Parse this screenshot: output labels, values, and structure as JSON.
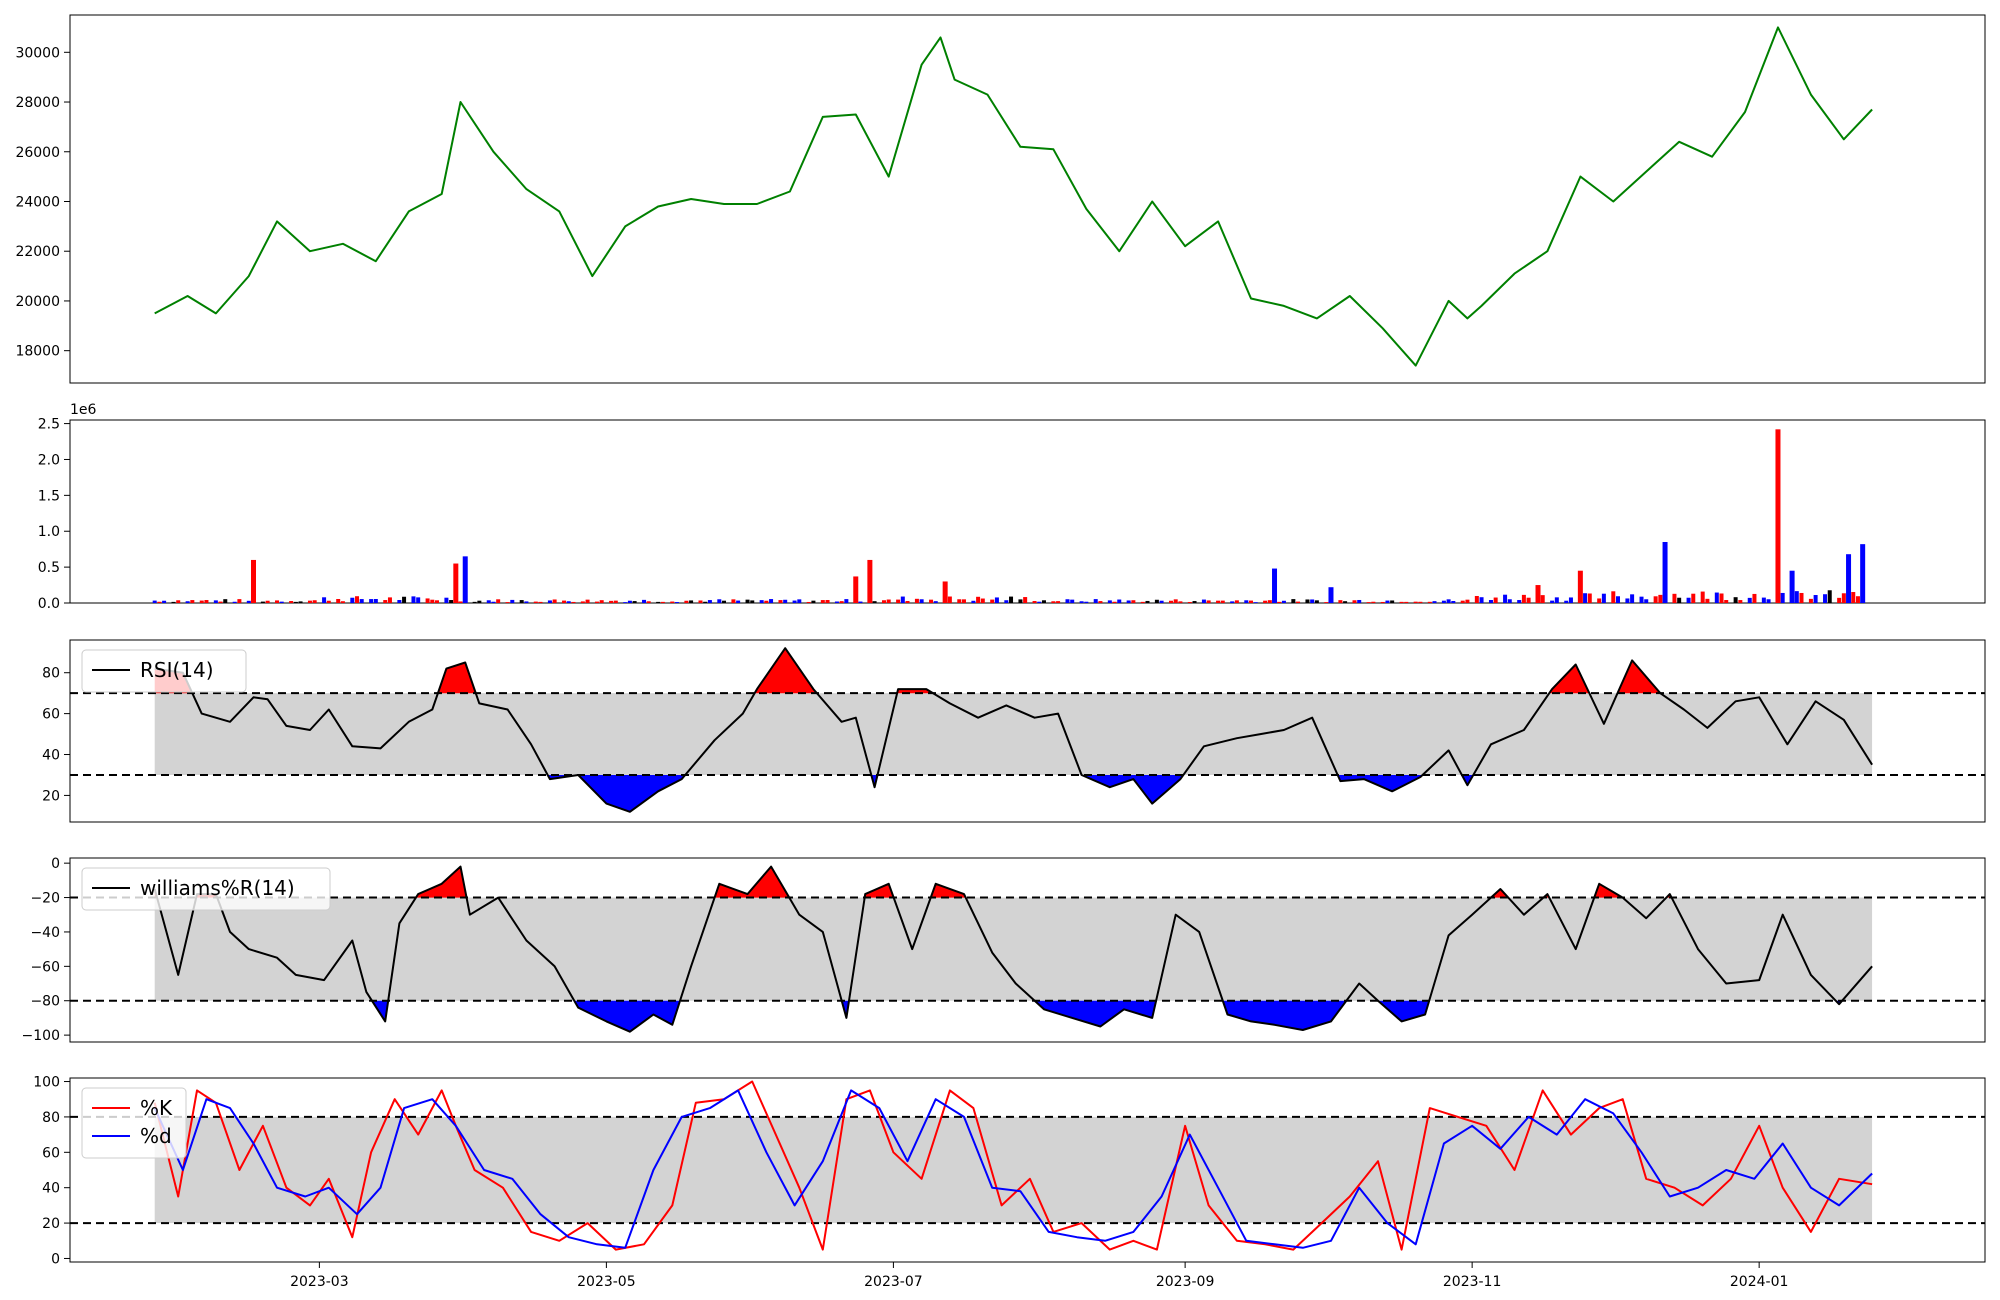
{
  "chart_data": [
    {
      "type": "line",
      "panel": "price",
      "line_color": "#008000",
      "ylim": [
        16700,
        31500
      ],
      "yticks": [
        "18000",
        "20000",
        "22000",
        "24000",
        "26000",
        "28000",
        "30000"
      ],
      "x": [
        "2023-01-25",
        "2023-02-01",
        "2023-02-07",
        "2023-02-14",
        "2023-02-20",
        "2023-02-27",
        "2023-03-06",
        "2023-03-13",
        "2023-03-20",
        "2023-03-27",
        "2023-03-31",
        "2023-04-07",
        "2023-04-14",
        "2023-04-21",
        "2023-04-28",
        "2023-05-05",
        "2023-05-12",
        "2023-05-19",
        "2023-05-26",
        "2023-06-02",
        "2023-06-09",
        "2023-06-16",
        "2023-06-23",
        "2023-06-30",
        "2023-07-07",
        "2023-07-11",
        "2023-07-14",
        "2023-07-21",
        "2023-07-28",
        "2023-08-04",
        "2023-08-11",
        "2023-08-18",
        "2023-08-25",
        "2023-09-01",
        "2023-09-08",
        "2023-09-15",
        "2023-09-22",
        "2023-09-29",
        "2023-10-06",
        "2023-10-13",
        "2023-10-20",
        "2023-10-27",
        "2023-10-31",
        "2023-11-03",
        "2023-11-10",
        "2023-11-17",
        "2023-11-24",
        "2023-12-01",
        "2023-12-08",
        "2023-12-15",
        "2023-12-22",
        "2023-12-29",
        "2024-01-05",
        "2024-01-12",
        "2024-01-19",
        "2024-01-25"
      ],
      "values": [
        19500,
        20200,
        19500,
        21000,
        23200,
        22000,
        22300,
        21600,
        23600,
        24300,
        28000,
        26000,
        24500,
        23600,
        21000,
        23000,
        23800,
        24100,
        23900,
        23900,
        24400,
        27400,
        27500,
        25000,
        29500,
        30600,
        28900,
        28300,
        26200,
        26100,
        23700,
        22000,
        24000,
        22200,
        23200,
        20100,
        19800,
        19300,
        20200,
        18900,
        17400,
        20000,
        19300,
        19800,
        21100,
        22000,
        25000,
        24000,
        25200,
        26400,
        25800,
        27600,
        31000,
        28300,
        26500,
        27700
      ]
    },
    {
      "type": "bar",
      "panel": "volume",
      "offset_label": "1e6",
      "ylim": [
        0,
        2.55
      ],
      "yticks": [
        "0.0",
        "0.5",
        "1.0",
        "1.5",
        "2.0",
        "2.5"
      ],
      "colors": {
        "up": "#ff0000",
        "down": "#0000ff",
        "neutral": "#000000"
      },
      "spikes": [
        {
          "x": "2023-02-15",
          "value": 0.6,
          "dir": "up"
        },
        {
          "x": "2023-03-30",
          "value": 0.55,
          "dir": "up"
        },
        {
          "x": "2023-04-01",
          "value": 0.65,
          "dir": "down"
        },
        {
          "x": "2023-06-23",
          "value": 0.37,
          "dir": "up"
        },
        {
          "x": "2023-06-26",
          "value": 0.6,
          "dir": "up"
        },
        {
          "x": "2023-07-12",
          "value": 0.3,
          "dir": "up"
        },
        {
          "x": "2023-09-20",
          "value": 0.48,
          "dir": "down"
        },
        {
          "x": "2023-10-02",
          "value": 0.22,
          "dir": "down"
        },
        {
          "x": "2023-11-15",
          "value": 0.25,
          "dir": "up"
        },
        {
          "x": "2023-11-24",
          "value": 0.45,
          "dir": "up"
        },
        {
          "x": "2023-12-12",
          "value": 0.85,
          "dir": "down"
        },
        {
          "x": "2024-01-05",
          "value": 2.42,
          "dir": "up"
        },
        {
          "x": "2024-01-08",
          "value": 0.45,
          "dir": "down"
        },
        {
          "x": "2024-01-20",
          "value": 0.68,
          "dir": "down"
        },
        {
          "x": "2024-01-23",
          "value": 0.82,
          "dir": "down"
        }
      ]
    },
    {
      "type": "line",
      "panel": "rsi",
      "series_name": "RSI(14)",
      "ylim": [
        7,
        96
      ],
      "yticks": [
        "20",
        "40",
        "60",
        "80"
      ],
      "upper": 70,
      "lower": 30,
      "band_color": "#d3d3d3",
      "overbought_fill": "#ff0000",
      "oversold_fill": "#0000ff",
      "x": [
        "2023-01-25",
        "2023-01-31",
        "2023-02-04",
        "2023-02-10",
        "2023-02-15",
        "2023-02-18",
        "2023-02-22",
        "2023-02-27",
        "2023-03-03",
        "2023-03-08",
        "2023-03-14",
        "2023-03-20",
        "2023-03-25",
        "2023-03-28",
        "2023-04-01",
        "2023-04-04",
        "2023-04-10",
        "2023-04-15",
        "2023-04-19",
        "2023-04-25",
        "2023-05-01",
        "2023-05-06",
        "2023-05-12",
        "2023-05-17",
        "2023-05-24",
        "2023-05-30",
        "2023-06-02",
        "2023-06-08",
        "2023-06-14",
        "2023-06-20",
        "2023-06-23",
        "2023-06-27",
        "2023-07-02",
        "2023-07-08",
        "2023-07-13",
        "2023-07-19",
        "2023-07-25",
        "2023-07-31",
        "2023-08-05",
        "2023-08-10",
        "2023-08-16",
        "2023-08-21",
        "2023-08-25",
        "2023-08-31",
        "2023-09-05",
        "2023-09-12",
        "2023-09-17",
        "2023-09-22",
        "2023-09-28",
        "2023-10-04",
        "2023-10-09",
        "2023-10-15",
        "2023-10-21",
        "2023-10-27",
        "2023-10-31",
        "2023-11-05",
        "2023-11-12",
        "2023-11-18",
        "2023-11-23",
        "2023-11-29",
        "2023-12-05",
        "2023-12-11",
        "2023-12-16",
        "2023-12-21",
        "2023-12-27",
        "2024-01-01",
        "2024-01-07",
        "2024-01-13",
        "2024-01-19",
        "2024-01-25"
      ],
      "values": [
        82,
        80,
        60,
        56,
        68,
        67,
        54,
        52,
        62,
        44,
        43,
        56,
        62,
        82,
        85,
        65,
        62,
        45,
        28,
        30,
        16,
        12,
        22,
        28,
        47,
        60,
        72,
        92,
        72,
        56,
        58,
        24,
        72,
        72,
        65,
        58,
        64,
        58,
        60,
        30,
        24,
        28,
        16,
        28,
        44,
        48,
        50,
        52,
        58,
        27,
        28,
        22,
        29,
        42,
        25,
        45,
        52,
        72,
        84,
        55,
        86,
        70,
        62,
        53,
        66,
        68,
        45,
        66,
        57,
        35
      ]
    },
    {
      "type": "line",
      "panel": "williams",
      "series_name": "williams%R(14)",
      "ylim": [
        -104,
        3
      ],
      "yticks": [
        "0",
        "−20",
        "−40",
        "−60",
        "−80",
        "−100"
      ],
      "upper": -20,
      "lower": -80,
      "band_color": "#d3d3d3",
      "overbought_fill": "#ff0000",
      "oversold_fill": "#0000ff",
      "x": [
        "2023-01-25",
        "2023-01-30",
        "2023-02-03",
        "2023-02-07",
        "2023-02-10",
        "2023-02-14",
        "2023-02-20",
        "2023-02-24",
        "2023-03-02",
        "2023-03-08",
        "2023-03-11",
        "2023-03-15",
        "2023-03-18",
        "2023-03-22",
        "2023-03-27",
        "2023-03-31",
        "2023-04-02",
        "2023-04-08",
        "2023-04-14",
        "2023-04-20",
        "2023-04-25",
        "2023-05-01",
        "2023-05-06",
        "2023-05-11",
        "2023-05-15",
        "2023-05-19",
        "2023-05-25",
        "2023-05-31",
        "2023-06-05",
        "2023-06-11",
        "2023-06-16",
        "2023-06-21",
        "2023-06-25",
        "2023-06-30",
        "2023-07-05",
        "2023-07-10",
        "2023-07-16",
        "2023-07-22",
        "2023-07-27",
        "2023-08-02",
        "2023-08-08",
        "2023-08-14",
        "2023-08-19",
        "2023-08-25",
        "2023-08-30",
        "2023-09-04",
        "2023-09-10",
        "2023-09-15",
        "2023-09-20",
        "2023-09-26",
        "2023-10-02",
        "2023-10-08",
        "2023-10-12",
        "2023-10-17",
        "2023-10-22",
        "2023-10-27",
        "2023-11-01",
        "2023-11-07",
        "2023-11-12",
        "2023-11-17",
        "2023-11-23",
        "2023-11-28",
        "2023-12-03",
        "2023-12-08",
        "2023-12-13",
        "2023-12-19",
        "2023-12-25",
        "2024-01-01",
        "2024-01-06",
        "2024-01-12",
        "2024-01-18",
        "2024-01-25"
      ],
      "values": [
        -15,
        -65,
        -18,
        -18,
        -40,
        -50,
        -55,
        -65,
        -68,
        -45,
        -75,
        -92,
        -35,
        -18,
        -12,
        -2,
        -30,
        -20,
        -45,
        -60,
        -84,
        -92,
        -98,
        -88,
        -94,
        -60,
        -12,
        -18,
        -2,
        -30,
        -40,
        -90,
        -18,
        -12,
        -50,
        -12,
        -18,
        -52,
        -70,
        -85,
        -90,
        -95,
        -85,
        -90,
        -30,
        -40,
        -88,
        -92,
        -94,
        -97,
        -92,
        -70,
        -80,
        -92,
        -88,
        -42,
        -30,
        -15,
        -30,
        -18,
        -50,
        -12,
        -20,
        -32,
        -18,
        -50,
        -70,
        -68,
        -30,
        -65,
        -82,
        -60
      ]
    },
    {
      "type": "line",
      "panel": "stochastic",
      "ylim": [
        -2,
        102
      ],
      "yticks": [
        "0",
        "20",
        "40",
        "60",
        "80",
        "100"
      ],
      "upper": 80,
      "lower": 20,
      "band_color": "#d3d3d3",
      "series": [
        {
          "name": "%K",
          "color": "#ff0000",
          "x": [
            "2023-01-25",
            "2023-01-30",
            "2023-02-03",
            "2023-02-07",
            "2023-02-12",
            "2023-02-17",
            "2023-02-22",
            "2023-02-27",
            "2023-03-03",
            "2023-03-08",
            "2023-03-12",
            "2023-03-17",
            "2023-03-22",
            "2023-03-27",
            "2023-03-30",
            "2023-04-03",
            "2023-04-09",
            "2023-04-15",
            "2023-04-21",
            "2023-04-27",
            "2023-05-03",
            "2023-05-09",
            "2023-05-15",
            "2023-05-20",
            "2023-05-26",
            "2023-06-01",
            "2023-06-06",
            "2023-06-11",
            "2023-06-16",
            "2023-06-21",
            "2023-06-26",
            "2023-07-01",
            "2023-07-07",
            "2023-07-13",
            "2023-07-18",
            "2023-07-24",
            "2023-07-30",
            "2023-08-04",
            "2023-08-10",
            "2023-08-16",
            "2023-08-21",
            "2023-08-26",
            "2023-09-01",
            "2023-09-06",
            "2023-09-12",
            "2023-09-18",
            "2023-09-24",
            "2023-09-30",
            "2023-10-06",
            "2023-10-12",
            "2023-10-17",
            "2023-10-23",
            "2023-10-29",
            "2023-11-04",
            "2023-11-10",
            "2023-11-16",
            "2023-11-22",
            "2023-11-28",
            "2023-12-03",
            "2023-12-08",
            "2023-12-14",
            "2023-12-20",
            "2023-12-26",
            "2024-01-01",
            "2024-01-06",
            "2024-01-12",
            "2024-01-18",
            "2024-01-25"
          ],
          "values": [
            88,
            35,
            95,
            88,
            50,
            75,
            40,
            30,
            45,
            12,
            60,
            90,
            70,
            95,
            75,
            50,
            40,
            15,
            10,
            20,
            5,
            8,
            30,
            88,
            90,
            100,
            70,
            40,
            5,
            90,
            95,
            60,
            45,
            95,
            85,
            30,
            45,
            15,
            20,
            5,
            10,
            5,
            75,
            30,
            10,
            8,
            5,
            20,
            35,
            55,
            5,
            85,
            80,
            75,
            50,
            95,
            70,
            85,
            90,
            45,
            40,
            30,
            45,
            75,
            40,
            15,
            45,
            42
          ]
        },
        {
          "name": "%d",
          "color": "#0000ff",
          "x": [
            "2023-01-25",
            "2023-01-31",
            "2023-02-05",
            "2023-02-10",
            "2023-02-15",
            "2023-02-20",
            "2023-02-26",
            "2023-03-03",
            "2023-03-09",
            "2023-03-14",
            "2023-03-19",
            "2023-03-25",
            "2023-03-30",
            "2023-04-05",
            "2023-04-11",
            "2023-04-17",
            "2023-04-23",
            "2023-04-29",
            "2023-05-05",
            "2023-05-11",
            "2023-05-17",
            "2023-05-23",
            "2023-05-29",
            "2023-06-04",
            "2023-06-10",
            "2023-06-16",
            "2023-06-22",
            "2023-06-28",
            "2023-07-04",
            "2023-07-10",
            "2023-07-16",
            "2023-07-22",
            "2023-07-28",
            "2023-08-03",
            "2023-08-09",
            "2023-08-15",
            "2023-08-21",
            "2023-08-27",
            "2023-09-02",
            "2023-09-08",
            "2023-09-14",
            "2023-09-20",
            "2023-09-26",
            "2023-10-02",
            "2023-10-08",
            "2023-10-14",
            "2023-10-20",
            "2023-10-26",
            "2023-11-01",
            "2023-11-07",
            "2023-11-13",
            "2023-11-19",
            "2023-11-25",
            "2023-12-01",
            "2023-12-07",
            "2023-12-13",
            "2023-12-19",
            "2023-12-25",
            "2023-12-31",
            "2024-01-06",
            "2024-01-12",
            "2024-01-18",
            "2024-01-25"
          ],
          "values": [
            85,
            50,
            90,
            85,
            65,
            40,
            35,
            40,
            25,
            40,
            85,
            90,
            75,
            50,
            45,
            25,
            12,
            8,
            6,
            50,
            80,
            85,
            95,
            60,
            30,
            55,
            95,
            85,
            55,
            90,
            80,
            40,
            38,
            15,
            12,
            10,
            15,
            35,
            70,
            40,
            10,
            8,
            6,
            10,
            40,
            20,
            8,
            65,
            75,
            62,
            80,
            70,
            90,
            82,
            60,
            35,
            40,
            50,
            45,
            65,
            40,
            30,
            48
          ]
        }
      ]
    }
  ],
  "x_axis": {
    "date_range": [
      "2023-01-07",
      "2024-02-18"
    ],
    "ticks": [
      {
        "date": "2023-03-01",
        "label": "2023-03"
      },
      {
        "date": "2023-05-01",
        "label": "2023-05"
      },
      {
        "date": "2023-07-01",
        "label": "2023-07"
      },
      {
        "date": "2023-09-01",
        "label": "2023-09"
      },
      {
        "date": "2023-11-01",
        "label": "2023-11"
      },
      {
        "date": "2024-01-01",
        "label": "2024-01"
      }
    ]
  }
}
